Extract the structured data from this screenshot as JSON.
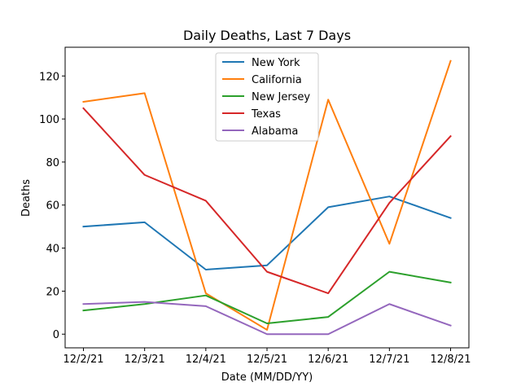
{
  "chart_data": {
    "type": "line",
    "title": "Daily Deaths, Last 7 Days",
    "xlabel": "Date (MM/DD/YY)",
    "ylabel": "Deaths",
    "categories": [
      "12/2/21",
      "12/3/21",
      "12/4/21",
      "12/5/21",
      "12/6/21",
      "12/7/21",
      "12/8/21"
    ],
    "ylim": [
      -6.35,
      133.35
    ],
    "yticks": [
      0,
      20,
      40,
      60,
      80,
      100,
      120
    ],
    "grid": false,
    "legend_position": "top-center",
    "series": [
      {
        "name": "New York",
        "color": "#1f77b4",
        "values": [
          50,
          52,
          30,
          32,
          59,
          64,
          54
        ]
      },
      {
        "name": "California",
        "color": "#ff7f0e",
        "values": [
          108,
          112,
          19,
          2,
          109,
          42,
          127
        ]
      },
      {
        "name": "New Jersey",
        "color": "#2ca02c",
        "values": [
          11,
          14,
          18,
          5,
          8,
          29,
          24
        ]
      },
      {
        "name": "Texas",
        "color": "#d62728",
        "values": [
          105,
          74,
          62,
          29,
          19,
          61,
          92
        ]
      },
      {
        "name": "Alabama",
        "color": "#9467bd",
        "values": [
          14,
          15,
          13,
          0,
          0,
          14,
          4
        ]
      }
    ]
  }
}
